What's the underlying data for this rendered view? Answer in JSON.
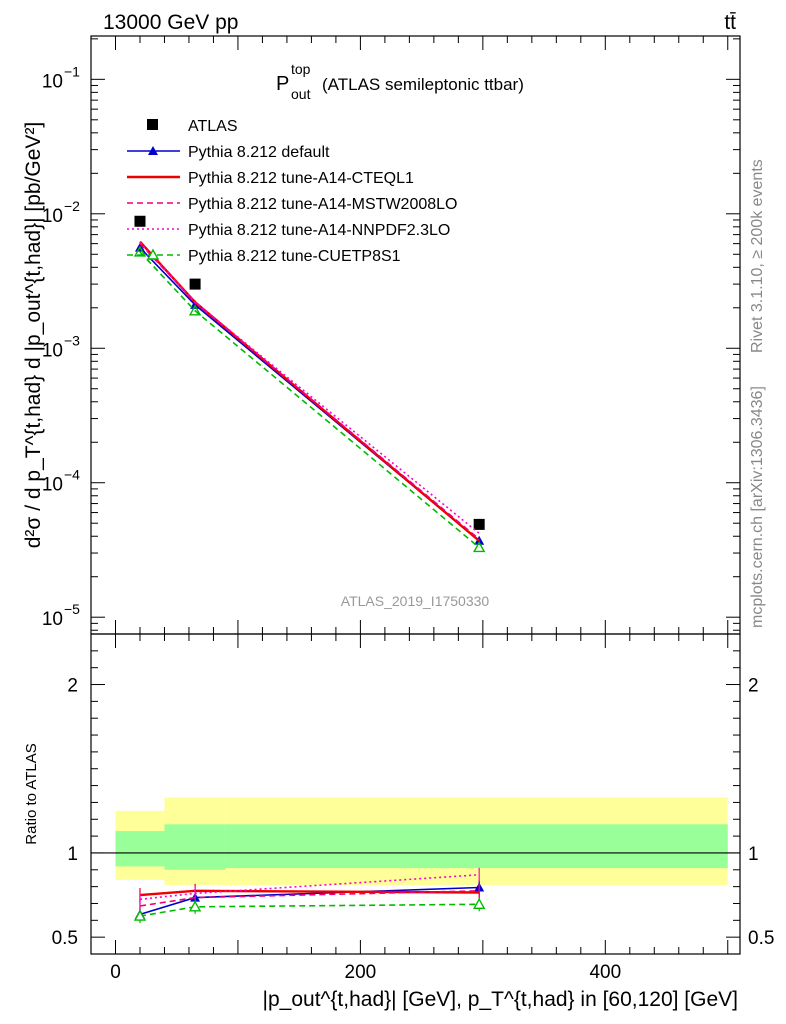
{
  "header": {
    "energy": "13000 GeV pp",
    "process": "tt̄"
  },
  "side": {
    "rivet": "Rivet 3.1.10, ≥ 200k events",
    "mcplots": "mcplots.cern.ch [arXiv:1306.3436]"
  },
  "analysis_id": "ATLAS_2019_I1750330",
  "plot_title": {
    "main": "P",
    "sup": "top",
    "sub": "out",
    "rest": "(ATLAS semileptonic ttbar)"
  },
  "axes": {
    "ylabel_main": "d²σ / d p_T^{t,had} d |p_out^{t,had}| [pb/GeV²]",
    "ylabel_ratio": "Ratio to ATLAS",
    "xlabel": "|p_out^{t,had}| [GeV], p_T^{t,had} in [60,120] [GeV]"
  },
  "chart_data": [
    {
      "type": "scatter",
      "panel": "main",
      "yscale": "log",
      "xlim": [
        -20,
        510
      ],
      "ylim": [
        7.5e-06,
        0.21
      ],
      "x_ticks": [
        0,
        200,
        400
      ],
      "y_tick_labels": [
        {
          "value": 0.1,
          "base": "10",
          "exp": "−1"
        },
        {
          "value": 0.01,
          "base": "10",
          "exp": "−2"
        },
        {
          "value": 0.001,
          "base": "10",
          "exp": "−3"
        },
        {
          "value": 0.0001,
          "base": "10",
          "exp": "−4"
        },
        {
          "value": 1e-05,
          "base": "10",
          "exp": "−5"
        }
      ],
      "x": [
        20,
        65,
        297
      ],
      "series": [
        {
          "name": "ATLAS",
          "marker": "square",
          "color": "#000000",
          "line": "none",
          "values": [
            0.0088,
            0.003,
            4.9e-05
          ]
        },
        {
          "name": "Pythia 8.212 default",
          "marker": "triangle",
          "color": "#0000cc",
          "line": "solid",
          "values": [
            0.0056,
            0.0021,
            3.7e-05
          ]
        },
        {
          "name": "Pythia 8.212 tune-A14-CTEQL1",
          "marker": "none",
          "color": "#ee0000",
          "line": "solid",
          "values": [
            0.0062,
            0.0022,
            3.7e-05
          ]
        },
        {
          "name": "Pythia 8.212 tune-A14-MSTW2008LO",
          "marker": "none",
          "color": "#ee0077",
          "line": "dashed",
          "values": [
            0.006,
            0.0022,
            3.8e-05
          ]
        },
        {
          "name": "Pythia 8.212 tune-A14-NNPDF2.3LO",
          "marker": "none",
          "color": "#ff00cc",
          "line": "dotted",
          "values": [
            0.0061,
            0.0022,
            4.2e-05
          ]
        },
        {
          "name": "Pythia 8.212 tune-CUETP8S1",
          "marker": "open-triangle",
          "color": "#00bb00",
          "line": "dashed",
          "values": [
            0.0052,
            0.0019,
            3.3e-05
          ]
        }
      ]
    },
    {
      "type": "line",
      "panel": "ratio",
      "xlim": [
        -20,
        510
      ],
      "ylim": [
        0.4,
        2.3
      ],
      "y_ticks": [
        0.5,
        1,
        2
      ],
      "reference": 1,
      "bands": [
        {
          "name": "ATLAS total uncertainty",
          "color": "#ffff99",
          "bins": [
            [
              0,
              40,
              0.84,
              1.25
            ],
            [
              40,
              90,
              0.81,
              1.33
            ],
            [
              90,
              500,
              0.81,
              1.33
            ]
          ]
        },
        {
          "name": "ATLAS stat uncertainty",
          "color": "#99ff99",
          "bins": [
            [
              0,
              40,
              0.92,
              1.13
            ],
            [
              40,
              90,
              0.9,
              1.17
            ],
            [
              90,
              500,
              0.91,
              1.17
            ]
          ]
        }
      ],
      "x": [
        20,
        65,
        297
      ],
      "series": [
        {
          "name": "Pythia 8.212 default",
          "color": "#0000cc",
          "line": "solid",
          "marker": "triangle",
          "values": [
            0.635,
            0.735,
            0.795
          ]
        },
        {
          "name": "Pythia 8.212 tune-A14-CTEQL1",
          "color": "#ee0000",
          "line": "solid",
          "marker": "none",
          "values": [
            0.75,
            0.775,
            0.765
          ]
        },
        {
          "name": "Pythia 8.212 tune-A14-MSTW2008LO",
          "color": "#ee0077",
          "line": "dashed",
          "marker": "none",
          "values": [
            0.685,
            0.735,
            0.775
          ]
        },
        {
          "name": "Pythia 8.212 tune-A14-NNPDF2.3LO",
          "color": "#ff00cc",
          "line": "dotted",
          "marker": "none",
          "values": [
            0.725,
            0.76,
            0.87
          ]
        },
        {
          "name": "Pythia 8.212 tune-CUETP8S1",
          "color": "#00bb00",
          "line": "dashed",
          "marker": "open-triangle",
          "values": [
            0.625,
            0.68,
            0.695
          ]
        }
      ]
    }
  ]
}
